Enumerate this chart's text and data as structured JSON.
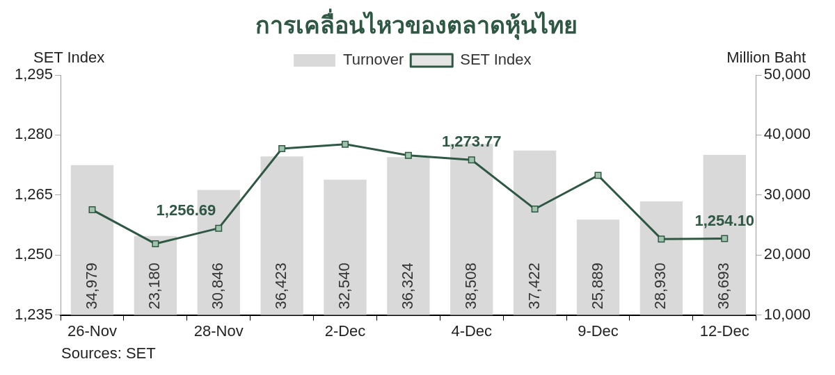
{
  "chart_data": {
    "type": "bar",
    "title": "การเคลื่อนไหวของตลาดหุ้นไทย",
    "categories": [
      "26-Nov",
      null,
      "28-Nov",
      null,
      "2-Dec",
      null,
      "4-Dec",
      null,
      "9-Dec",
      null,
      "12-Dec"
    ],
    "series": [
      {
        "name": "Turnover",
        "type": "bar",
        "axis": "y2",
        "color": "#d9d9d9",
        "values": [
          34979,
          23180,
          30846,
          36423,
          32540,
          36324,
          38508,
          37422,
          25889,
          28930,
          36693
        ],
        "value_labels": [
          "34,979",
          "23,180",
          "30,846",
          "36,423",
          "32,540",
          "36,324",
          "38,508",
          "37,422",
          "25,889",
          "28,930",
          "36,693"
        ]
      },
      {
        "name": "SET Index",
        "type": "line",
        "axis": "y",
        "color": "#2e5744",
        "marker": "square",
        "line_style": "solid",
        "values": [
          1261.3,
          1252.8,
          1256.69,
          1276.6,
          1277.7,
          1274.9,
          1273.77,
          1261.5,
          1269.9,
          1254.0,
          1254.1
        ],
        "value_labels": [
          null,
          null,
          "1,256.69",
          null,
          null,
          null,
          "1,273.77",
          null,
          null,
          null,
          "1,254.10"
        ]
      }
    ],
    "ylabel": "SET Index",
    "y2label": "Million Baht",
    "ylim": [
      1235,
      1295
    ],
    "yticks": [
      {
        "value": 1235,
        "label": "1,235"
      },
      {
        "value": 1250,
        "label": "1,250"
      },
      {
        "value": 1265,
        "label": "1,265"
      },
      {
        "value": 1280,
        "label": "1,280"
      },
      {
        "value": 1295,
        "label": "1,295"
      }
    ],
    "y2lim": [
      10000,
      50000
    ],
    "y2ticks": [
      {
        "value": 10000,
        "label": "10,000"
      },
      {
        "value": 20000,
        "label": "20,000"
      },
      {
        "value": 30000,
        "label": "30,000"
      },
      {
        "value": 40000,
        "label": "40,000"
      },
      {
        "value": 50000,
        "label": "50,000"
      }
    ],
    "grid": false,
    "legend": "top",
    "annotations": [
      "Sources: SET"
    ]
  }
}
